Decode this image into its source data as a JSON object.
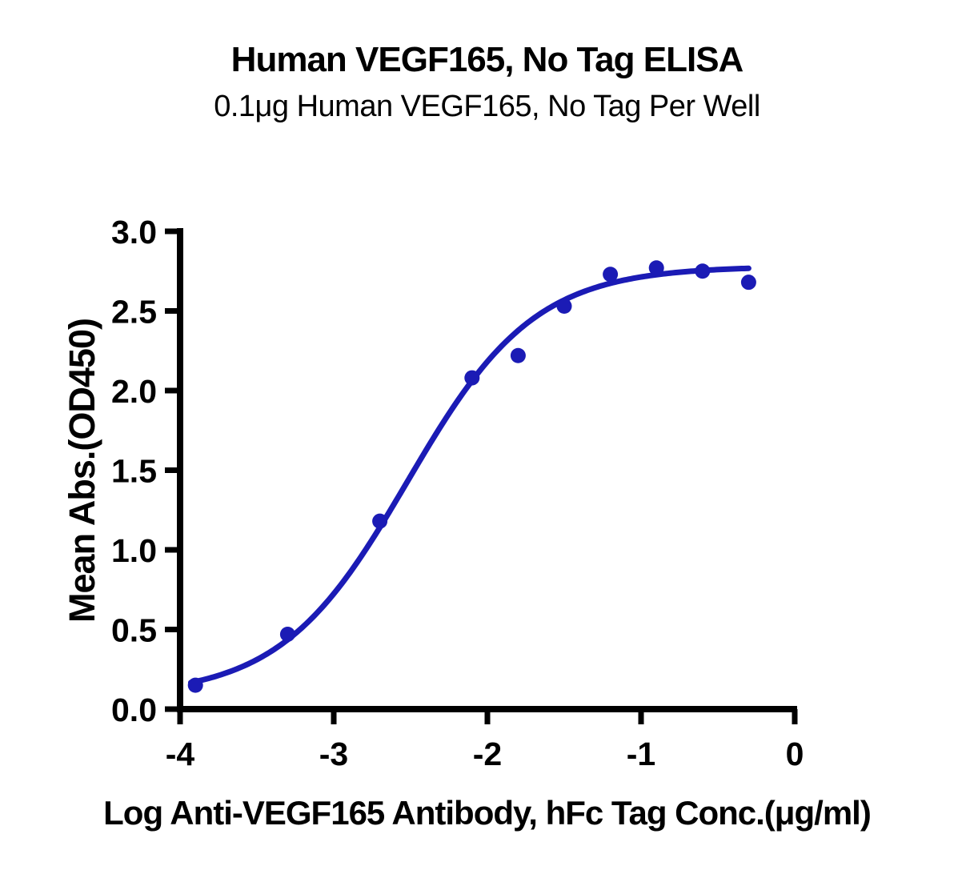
{
  "chart_data": {
    "type": "scatter",
    "title": "Human VEGF165, No Tag ELISA",
    "subtitle": "0.1μg Human VEGF165, No Tag Per Well",
    "xlabel": "Log Anti-VEGF165 Antibody, hFc Tag Conc.(μg/ml)",
    "ylabel": "Mean Abs.(OD450)",
    "xlim": [
      -4,
      0
    ],
    "ylim": [
      0,
      3
    ],
    "grid": false,
    "legend": "none",
    "axis_color": "#000000",
    "x_ticks": {
      "values": [
        -4,
        -3,
        -2,
        -1,
        0
      ],
      "labels": [
        "-4",
        "-3",
        "-2",
        "-1",
        "0"
      ]
    },
    "y_ticks": {
      "values": [
        0,
        0.5,
        1,
        1.5,
        2,
        2.5,
        3
      ],
      "labels": [
        "0.0",
        "0.5",
        "1.0",
        "1.5",
        "2.0",
        "2.5",
        "3.0"
      ]
    },
    "series": [
      {
        "name": "Anti-VEGF165 Antibody, hFc Tag",
        "color": "#1B1BB5",
        "marker": "circle",
        "points_x": [
          -3.9,
          -3.3,
          -2.7,
          -2.1,
          -1.8,
          -1.5,
          -1.2,
          -0.9,
          -0.6,
          -0.3
        ],
        "points_y": [
          0.15,
          0.47,
          1.18,
          2.08,
          2.22,
          2.53,
          2.73,
          2.77,
          2.75,
          2.68
        ],
        "fit_curve": {
          "model": "4PL",
          "bottom": 0.08,
          "top": 2.78,
          "log_ec50": -2.52,
          "hill": 1.05,
          "x_start": -3.93,
          "x_end": -0.3
        }
      }
    ]
  }
}
